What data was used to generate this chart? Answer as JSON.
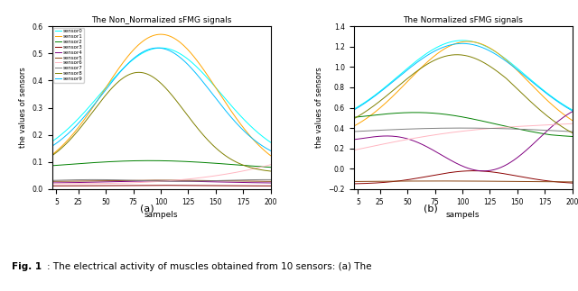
{
  "title_left": "The Non_Normalized sFMG signals",
  "title_right": "The Normalized sFMG signals",
  "xlabel": "sampels",
  "ylabel": "the values of sensors",
  "x_ticks": [
    5,
    25,
    50,
    75,
    100,
    125,
    150,
    175,
    200
  ],
  "caption_a": "(a)",
  "caption_b": "(b)",
  "fig_caption_bold": "Fig. 1",
  "fig_caption_normal": ": The electrical activity of muscles obtained from 10 sensors: (a) The",
  "sensor_colors": [
    "cyan",
    "orange",
    "green",
    "darkred",
    "purple",
    "saddlebrown",
    "lightpink",
    "gray",
    "olive",
    "deepskyblue"
  ],
  "sensor_labels": [
    "sensor0",
    "sensor1",
    "sensor2",
    "sensor3",
    "sensor4",
    "sensor5",
    "sensor6",
    "sensor7",
    "sensor8",
    "sensor9"
  ],
  "left_ylim": [
    0.0,
    0.6
  ],
  "right_ylim": [
    -0.2,
    1.4
  ]
}
